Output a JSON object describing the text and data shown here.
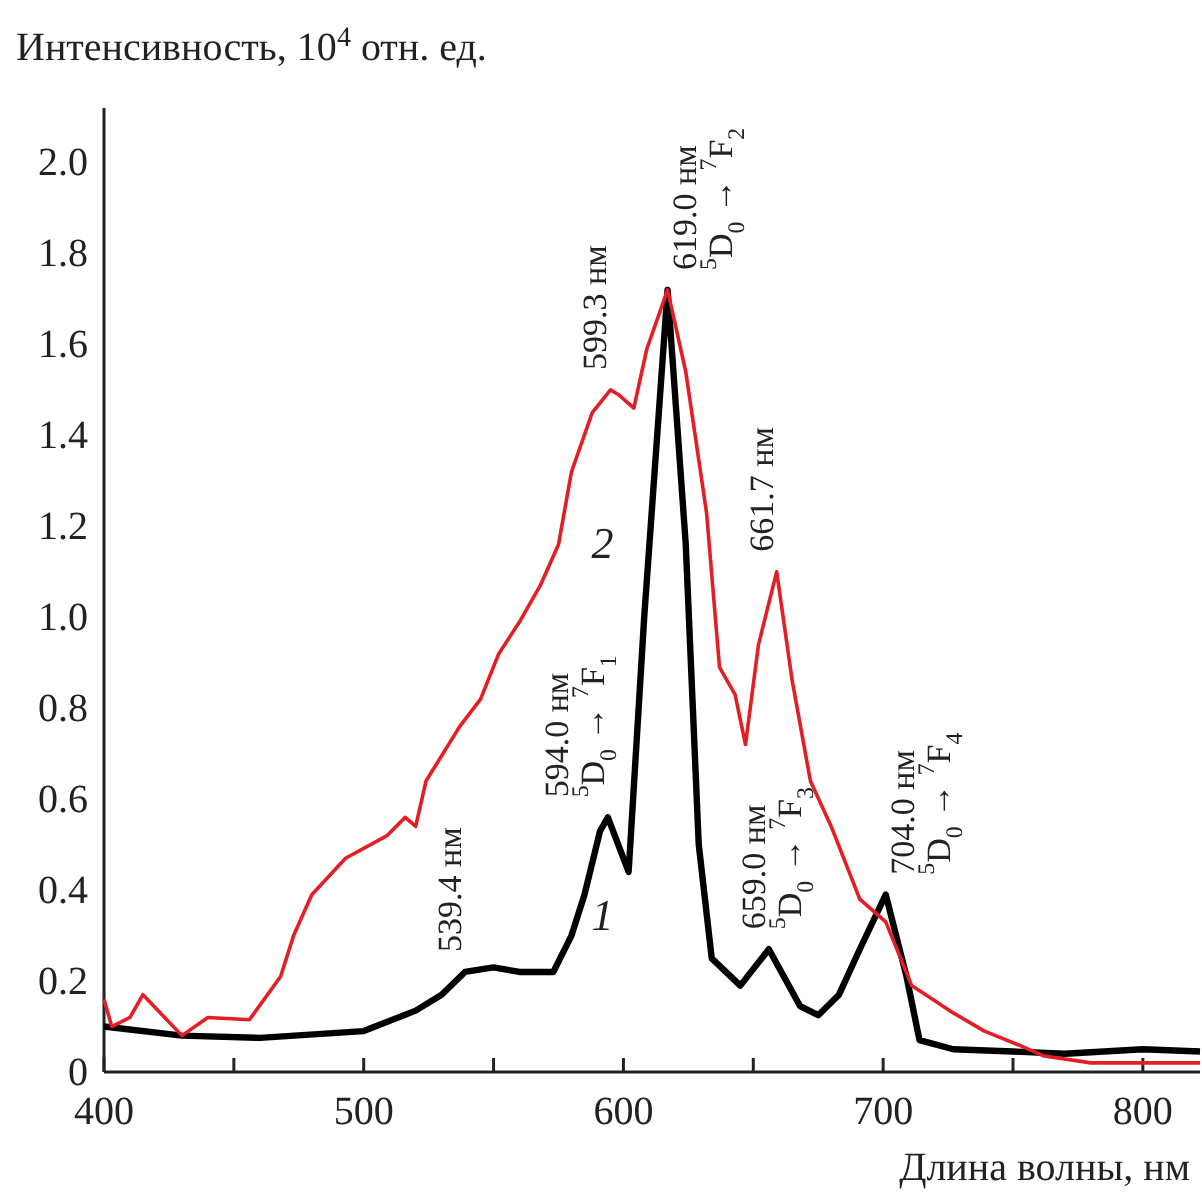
{
  "chart_data": {
    "type": "line",
    "ylabel": "Интенсивность, 10$^{4}$ отн. ед.",
    "xlabel": "Длина волны, нм",
    "xlim": [
      400,
      822
    ],
    "ylim": [
      0,
      2.12
    ],
    "xticks": [
      400,
      {
        "value": 450,
        "label": null
      },
      500,
      {
        "value": 550,
        "label": null
      },
      600,
      {
        "value": 650,
        "label": null
      },
      700,
      {
        "value": 750,
        "label": null
      },
      800
    ],
    "yticks": [
      0,
      0.2,
      0.4,
      0.6,
      0.8,
      {
        "value": 1,
        "label": "1.0"
      },
      1.2,
      1.4,
      1.6,
      1.8,
      {
        "value": 2,
        "label": "2.0"
      }
    ],
    "grid": false,
    "line_style": "solid",
    "series": [
      {
        "name": "1",
        "color": "#000000",
        "x": [
          400,
          430,
          460,
          500,
          520,
          530,
          539,
          550,
          560,
          573,
          580,
          585,
          591,
          594,
          602,
          608,
          617,
          624,
          629,
          634,
          645,
          656,
          668,
          675,
          683,
          691,
          701,
          709,
          714,
          727,
          750,
          770,
          800,
          822
        ],
        "values": [
          0.1,
          0.08,
          0.075,
          0.09,
          0.135,
          0.17,
          0.22,
          0.23,
          0.22,
          0.22,
          0.3,
          0.39,
          0.53,
          0.56,
          0.44,
          1.0,
          1.72,
          1.16,
          0.5,
          0.25,
          0.19,
          0.27,
          0.145,
          0.125,
          0.17,
          0.27,
          0.39,
          0.21,
          0.07,
          0.05,
          0.045,
          0.04,
          0.05,
          0.045
        ]
      },
      {
        "name": "2",
        "color": "#e31e24",
        "x": [
          400,
          403,
          410,
          415,
          430,
          440,
          456,
          468,
          473,
          480,
          493,
          509,
          516,
          520,
          524,
          537,
          545,
          552,
          560,
          568,
          575,
          580,
          588,
          595,
          598,
          604,
          609,
          617,
          624,
          632,
          637,
          643,
          647,
          652,
          659,
          665,
          672,
          680,
          691,
          701,
          711,
          727,
          739,
          752,
          762,
          780,
          800,
          822
        ],
        "values": [
          0.16,
          0.1,
          0.12,
          0.17,
          0.08,
          0.12,
          0.115,
          0.21,
          0.3,
          0.39,
          0.47,
          0.52,
          0.56,
          0.54,
          0.64,
          0.76,
          0.82,
          0.92,
          0.99,
          1.07,
          1.16,
          1.32,
          1.45,
          1.5,
          1.49,
          1.46,
          1.59,
          1.72,
          1.54,
          1.23,
          0.89,
          0.83,
          0.72,
          0.94,
          1.1,
          0.86,
          0.64,
          0.54,
          0.38,
          0.33,
          0.19,
          0.13,
          0.09,
          0.06,
          0.035,
          0.02,
          0.02,
          0.02
        ]
      }
    ],
    "annotations": [
      {
        "text": "539.4 нм",
        "x": 539,
        "y": 0.22
      },
      {
        "text": "594.0 нм",
        "x": 594,
        "y": 0.56
      },
      {
        "text": "$^{5}$D$_{0}$ → $^{7}$F$_{1}$",
        "x": 594,
        "y": 0.56
      },
      {
        "text": "599.3 нм",
        "x": 595,
        "y": 1.5
      },
      {
        "text": "619.0 нм",
        "x": 617,
        "y": 1.72
      },
      {
        "text": "$^{5}$D$_{0}$ → $^{7}$F$_{2}$",
        "x": 617,
        "y": 1.72
      },
      {
        "text": "661.7 нм",
        "x": 659,
        "y": 1.1
      },
      {
        "text": "659.0 нм",
        "x": 656,
        "y": 0.27
      },
      {
        "text": "$^{5}$D$_{0}$ → $^{7}$F$_{3}$",
        "x": 656,
        "y": 0.27
      },
      {
        "text": "704.0 нм",
        "x": 701,
        "y": 0.39
      },
      {
        "text": "$^{5}$D$_{0}$ → $^{7}$F$_{4}$",
        "x": 701,
        "y": 0.39
      }
    ]
  }
}
